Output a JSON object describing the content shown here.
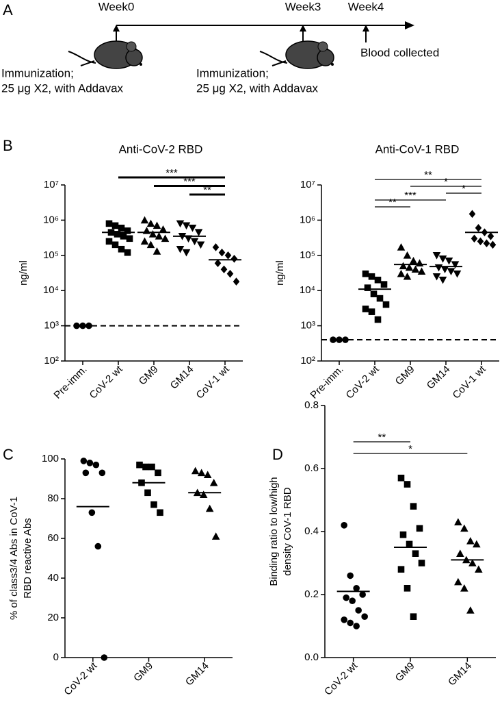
{
  "panel_labels": [
    "A",
    "B",
    "C",
    "D"
  ],
  "timeline": {
    "weeks": [
      "Week0",
      "Week3",
      "Week4"
    ],
    "immunization": [
      [
        "Immunization;",
        "25 μg X2, with Addavax"
      ],
      [
        "Immunization;",
        "25 μg X2, with Addavax"
      ]
    ],
    "blood": "Blood collected"
  },
  "chart_data": [
    {
      "type": "dot",
      "title": "Anti-CoV-2 RBD",
      "ylabel": [
        "ng/ml"
      ],
      "categories": [
        "Pre-imm.",
        "CoV-2 wt",
        "GM9",
        "GM14",
        "CoV-1 wt"
      ],
      "markers": [
        "circle",
        "square",
        "triangle",
        "triangle-down",
        "diamond"
      ],
      "color": "#000000",
      "values": [
        [
          1000,
          1000,
          1000
        ],
        [
          800000,
          700000,
          600000,
          500000,
          450000,
          400000,
          350000,
          300000,
          250000,
          200000,
          150000,
          120000
        ],
        [
          1000000,
          800000,
          700000,
          550000,
          500000,
          400000,
          350000,
          300000,
          250000,
          200000,
          130000
        ],
        [
          800000,
          700000,
          600000,
          450000,
          350000,
          300000,
          250000,
          200000,
          150000,
          120000
        ],
        [
          170000,
          120000,
          100000,
          80000,
          60000,
          40000,
          30000,
          18000
        ]
      ],
      "means": [
        null,
        450000,
        450000,
        350000,
        75000
      ],
      "detection_limit": 1000,
      "log_scale": true,
      "ylim": [
        100,
        10000000
      ],
      "yticks": [
        {
          "value": 100,
          "label": "10²"
        },
        {
          "value": 1000,
          "label": "10³"
        },
        {
          "value": 10000,
          "label": "10⁴"
        },
        {
          "value": 100000,
          "label": "10⁵"
        },
        {
          "value": 1000000,
          "label": "10⁶"
        },
        {
          "value": 10000000,
          "label": "10⁷"
        }
      ],
      "comparisons": [
        {
          "from": 1,
          "to": 4,
          "label": "***"
        },
        {
          "from": 2,
          "to": 4,
          "label": "***"
        },
        {
          "from": 3,
          "to": 4,
          "label": "**"
        }
      ]
    },
    {
      "type": "dot",
      "title": "Anti-CoV-1 RBD",
      "ylabel": [
        "ng/ml"
      ],
      "categories": [
        "Pre-imm.",
        "CoV-2 wt",
        "GM9",
        "GM14",
        "CoV-1 wt"
      ],
      "markers": [
        "circle",
        "square",
        "triangle",
        "triangle-down",
        "diamond"
      ],
      "color": "#000000",
      "values": [
        [
          400,
          400,
          400
        ],
        [
          30000,
          25000,
          20000,
          15000,
          12000,
          8000,
          6000,
          4000,
          3000,
          2500,
          1500
        ],
        [
          170000,
          100000,
          70000,
          60000,
          50000,
          45000,
          40000,
          35000,
          30000,
          25000
        ],
        [
          100000,
          80000,
          70000,
          55000,
          45000,
          40000,
          35000,
          30000,
          25000,
          20000
        ],
        [
          1500000,
          600000,
          450000,
          350000,
          300000,
          250000,
          220000,
          200000
        ]
      ],
      "means": [
        null,
        11000,
        55000,
        48000,
        450000
      ],
      "detection_limit": 400,
      "log_scale": true,
      "ylim": [
        100,
        10000000
      ],
      "yticks": [
        {
          "value": 100,
          "label": "10²"
        },
        {
          "value": 1000,
          "label": "10³"
        },
        {
          "value": 10000,
          "label": "10⁴"
        },
        {
          "value": 100000,
          "label": "10⁵"
        },
        {
          "value": 1000000,
          "label": "10⁶"
        },
        {
          "value": 10000000,
          "label": "10⁷"
        }
      ],
      "comparisons": [
        {
          "from": 1,
          "to": 4,
          "label": "**"
        },
        {
          "from": 2,
          "to": 4,
          "label": "*"
        },
        {
          "from": 3,
          "to": 4,
          "label": "*"
        },
        {
          "from": 1,
          "to": 3,
          "label": "***"
        },
        {
          "from": 1,
          "to": 2,
          "label": "**"
        }
      ]
    },
    {
      "type": "dot",
      "ylabel": [
        "% of class3/4 Abs in CoV-1",
        "RBD reactive Abs"
      ],
      "categories": [
        "CoV-2 wt",
        "GM9",
        "GM14"
      ],
      "markers": [
        "circle",
        "square",
        "triangle"
      ],
      "color": "#000000",
      "values": [
        [
          99,
          98,
          97,
          93,
          93,
          73,
          56,
          0
        ],
        [
          97,
          96,
          96,
          93,
          88,
          83,
          77,
          73
        ],
        [
          94,
          93,
          92,
          88,
          83,
          82,
          75,
          61
        ]
      ],
      "means": [
        76,
        88,
        83
      ],
      "log_scale": false,
      "ylim": [
        0,
        100
      ],
      "yticks": [
        0,
        20,
        40,
        60,
        80,
        100
      ]
    },
    {
      "type": "dot",
      "ylabel": [
        "Binding ratio to low/high",
        "density CoV-1 RBD"
      ],
      "categories": [
        "CoV-2 wt",
        "GM9",
        "GM14"
      ],
      "markers": [
        "circle",
        "square",
        "triangle"
      ],
      "color": "#000000",
      "values": [
        [
          0.42,
          0.26,
          0.22,
          0.2,
          0.19,
          0.18,
          0.15,
          0.13,
          0.12,
          0.11,
          0.1
        ],
        [
          0.57,
          0.55,
          0.48,
          0.41,
          0.39,
          0.36,
          0.33,
          0.3,
          0.28,
          0.22,
          0.13
        ],
        [
          0.43,
          0.41,
          0.37,
          0.36,
          0.33,
          0.31,
          0.3,
          0.28,
          0.24,
          0.22,
          0.15
        ]
      ],
      "means": [
        0.21,
        0.35,
        0.31
      ],
      "log_scale": false,
      "ylim": [
        0,
        0.8
      ],
      "yticks": [
        {
          "value": 0,
          "label": "0.0"
        },
        0.2,
        0.4,
        0.6,
        0.8
      ],
      "comparisons": [
        {
          "from": 0,
          "to": 1,
          "label": "**"
        },
        {
          "from": 0,
          "to": 2,
          "label": "*"
        }
      ]
    }
  ]
}
